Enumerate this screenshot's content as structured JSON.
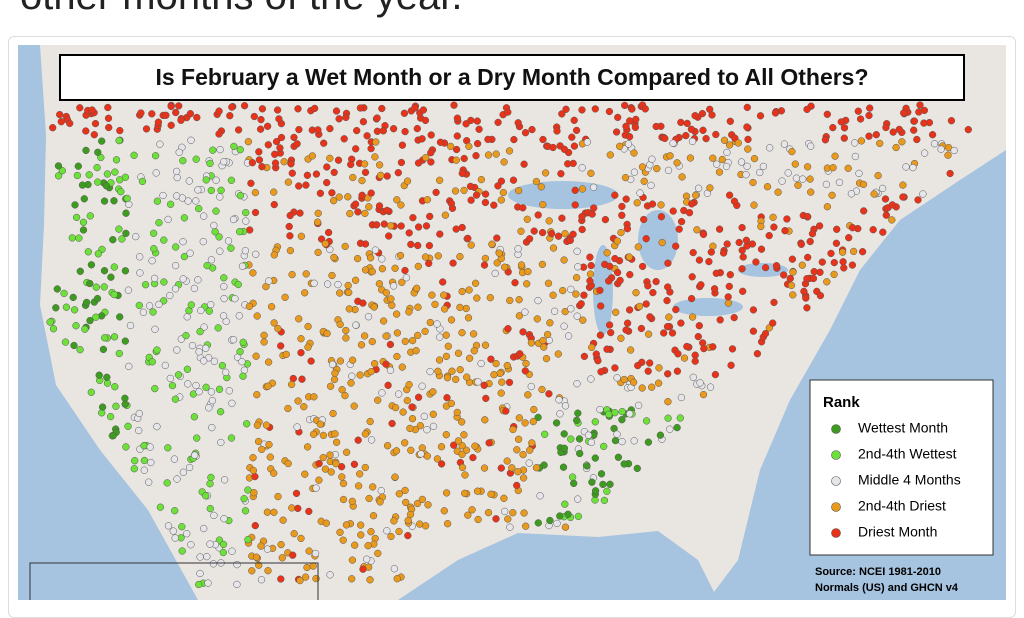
{
  "header": {
    "title": "other months of the year."
  },
  "map": {
    "title": "Is February a Wet Month or a Dry Month Compared to All Others?",
    "legend": {
      "title": "Rank",
      "items": [
        {
          "label": "Wettest Month",
          "color": "#3d9b1f"
        },
        {
          "label": "2nd-4th Wettest",
          "color": "#6de03a"
        },
        {
          "label": "Middle 4 Months",
          "color": "#e6e6ea"
        },
        {
          "label": "2nd-4th Driest",
          "color": "#e9991c"
        },
        {
          "label": "Driest Month",
          "color": "#e8321a"
        }
      ]
    },
    "source": [
      "Source:  NCEI 1981-2010",
      "Normals (US) and GHCN v4"
    ]
  }
}
